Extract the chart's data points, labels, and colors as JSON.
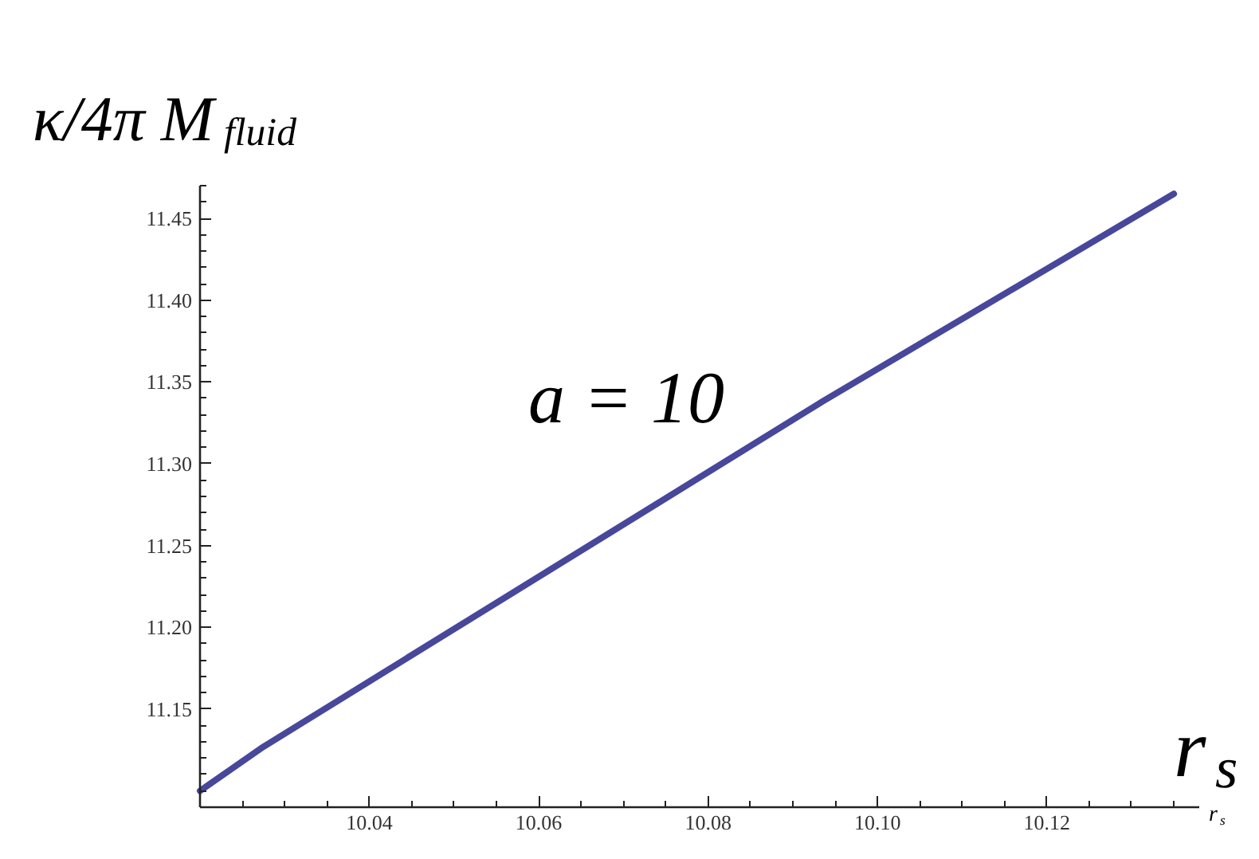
{
  "chart_data": {
    "type": "line",
    "ylabel": "κ/4π M$_{fluid}$",
    "xlabel": "r$_{s}$",
    "annotations": [
      "a = 10",
      "r$_{s}$"
    ],
    "x": [
      10.02,
      10.0275,
      10.0935,
      10.135
    ],
    "series": [
      {
        "color": "#47479b",
        "values": [
          11.1,
          11.127,
          11.338,
          11.465
        ]
      }
    ],
    "xlim": [
      10.02,
      10.138
    ],
    "ylim": [
      11.09,
      11.47
    ],
    "xticks": [
      {
        "value": 10.025,
        "label": null
      },
      {
        "value": 10.03,
        "label": null
      },
      {
        "value": 10.035,
        "label": null
      },
      10.04,
      {
        "value": 10.045,
        "label": null
      },
      {
        "value": 10.05,
        "label": null
      },
      {
        "value": 10.055,
        "label": null
      },
      10.06,
      {
        "value": 10.065,
        "label": null
      },
      {
        "value": 10.07,
        "label": null
      },
      {
        "value": 10.075,
        "label": null
      },
      10.08,
      {
        "value": 10.085,
        "label": null
      },
      {
        "value": 10.09,
        "label": null
      },
      {
        "value": 10.095,
        "label": null
      },
      {
        "value": 10.1,
        "label": "10.10"
      },
      {
        "value": 10.105,
        "label": null
      },
      {
        "value": 10.11,
        "label": null
      },
      {
        "value": 10.115,
        "label": null
      },
      10.12,
      {
        "value": 10.125,
        "label": null
      },
      {
        "value": 10.13,
        "label": null
      },
      {
        "value": 10.135,
        "label": null
      }
    ],
    "yticks": [
      {
        "value": 11.1,
        "label": null
      },
      {
        "value": 11.11,
        "label": null
      },
      {
        "value": 11.12,
        "label": null
      },
      {
        "value": 11.13,
        "label": null
      },
      {
        "value": 11.14,
        "label": null
      },
      11.15,
      {
        "value": 11.16,
        "label": null
      },
      {
        "value": 11.17,
        "label": null
      },
      {
        "value": 11.18,
        "label": null
      },
      {
        "value": 11.19,
        "label": null
      },
      {
        "value": 11.2,
        "label": "11.20"
      },
      {
        "value": 11.21,
        "label": null
      },
      {
        "value": 11.22,
        "label": null
      },
      {
        "value": 11.23,
        "label": null
      },
      {
        "value": 11.24,
        "label": null
      },
      11.25,
      {
        "value": 11.26,
        "label": null
      },
      {
        "value": 11.27,
        "label": null
      },
      {
        "value": 11.28,
        "label": null
      },
      {
        "value": 11.29,
        "label": null
      },
      {
        "value": 11.3,
        "label": "11.30"
      },
      {
        "value": 11.31,
        "label": null
      },
      {
        "value": 11.32,
        "label": null
      },
      {
        "value": 11.33,
        "label": null
      },
      {
        "value": 11.34,
        "label": null
      },
      11.35,
      {
        "value": 11.36,
        "label": null
      },
      {
        "value": 11.37,
        "label": null
      },
      {
        "value": 11.38,
        "label": null
      },
      {
        "value": 11.39,
        "label": null
      },
      {
        "value": 11.4,
        "label": "11.40"
      },
      {
        "value": 11.41,
        "label": null
      },
      {
        "value": 11.42,
        "label": null
      },
      {
        "value": 11.43,
        "label": null
      },
      {
        "value": 11.44,
        "label": null
      },
      11.45,
      {
        "value": 11.46,
        "label": null
      },
      {
        "value": 11.47,
        "label": null
      }
    ],
    "marker": "none",
    "line_style": "solid"
  }
}
